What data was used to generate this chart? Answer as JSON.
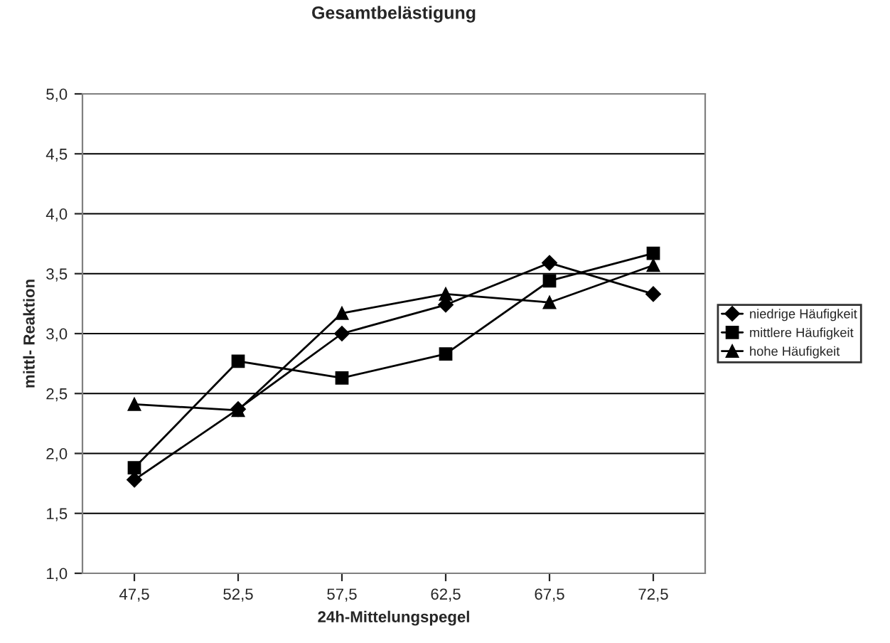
{
  "chart_data": {
    "type": "line",
    "title": "Gesamtbelästigung",
    "xlabel": "24h-Mittelungspegel",
    "ylabel": "mittl- Reaktion",
    "categories": [
      "47,5",
      "52,5",
      "57,5",
      "62,5",
      "67,5",
      "72,5"
    ],
    "series": [
      {
        "name": "niedrige Häufigkeit",
        "color": "#000000",
        "marker": "diamond",
        "values": [
          1.78,
          2.37,
          3.0,
          3.24,
          3.59,
          3.33
        ]
      },
      {
        "name": "mittlere Häufigkeit",
        "color": "#000000",
        "marker": "square",
        "values": [
          1.88,
          2.77,
          2.63,
          2.83,
          3.44,
          3.67
        ]
      },
      {
        "name": "hohe Häufigkeit",
        "color": "#000000",
        "marker": "triangle",
        "values": [
          2.41,
          2.36,
          3.17,
          3.33,
          3.26,
          3.57
        ]
      }
    ],
    "ylim": [
      1.0,
      5.0
    ],
    "yticks": [
      {
        "value": 1.0,
        "label": "1,0"
      },
      {
        "value": 1.5,
        "label": "1,5"
      },
      {
        "value": 2.0,
        "label": "2,0"
      },
      {
        "value": 2.5,
        "label": "2,5"
      },
      {
        "value": 3.0,
        "label": "3,0"
      },
      {
        "value": 3.5,
        "label": "3,5"
      },
      {
        "value": 4.0,
        "label": "4,0"
      },
      {
        "value": 4.5,
        "label": "4,5"
      },
      {
        "value": 5.0,
        "label": "5,0"
      }
    ],
    "grid": "y",
    "legend": "right",
    "line_style": "solid"
  }
}
